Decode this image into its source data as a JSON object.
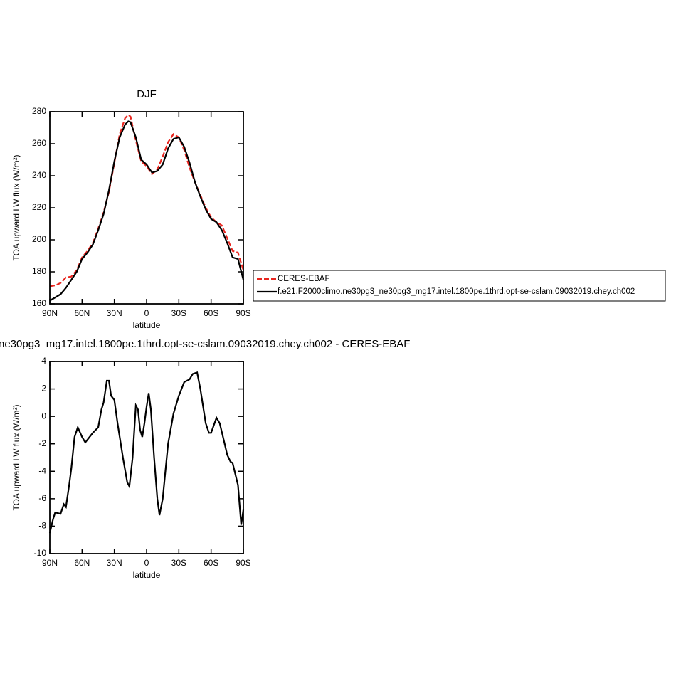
{
  "chart_data": [
    {
      "type": "line",
      "title": "DJF",
      "xlabel": "latitude",
      "ylabel": "TOA upward LW flux (W/m²)",
      "x": [
        90,
        85,
        80,
        75,
        70,
        65,
        60,
        55,
        50,
        45,
        40,
        35,
        30,
        25,
        20,
        17,
        15,
        10,
        5,
        0,
        -5,
        -10,
        -15,
        -20,
        -25,
        -30,
        -35,
        -40,
        -45,
        -50,
        -55,
        -60,
        -65,
        -70,
        -75,
        -80,
        -85,
        -90
      ],
      "series": [
        {
          "name": "CERES-EBAF",
          "color": "#e8261f",
          "dash": true,
          "values": [
            171,
            171.5,
            173,
            176.5,
            177,
            181,
            189,
            193,
            198,
            207,
            217,
            230,
            248,
            266,
            276,
            278,
            277,
            262,
            249,
            246,
            241,
            244,
            252,
            261,
            266,
            264,
            256,
            245,
            236,
            228,
            220,
            214,
            211,
            209,
            201,
            193,
            192,
            181
          ]
        },
        {
          "name": "f.e21.F2000climo.ne30pg3_ne30pg3_mg17.intel.1800pe.1thrd.opt-se-cslam.09032019.chey.ch002",
          "color": "#000000",
          "dash": false,
          "values": [
            162,
            164,
            166,
            170,
            175,
            180,
            188,
            192,
            197,
            206,
            216,
            231,
            249,
            264,
            272,
            274,
            273.5,
            264,
            250,
            247,
            242,
            243,
            247,
            257,
            263,
            264,
            258,
            248,
            236,
            227,
            219,
            213,
            211,
            206,
            198,
            189,
            188,
            175
          ]
        }
      ],
      "xlim": [
        90,
        -90
      ],
      "xticks": [
        {
          "value": 90,
          "label": "90N"
        },
        {
          "value": 60,
          "label": "60N"
        },
        {
          "value": 30,
          "label": "30N"
        },
        0,
        {
          "value": -30,
          "label": "30S"
        },
        {
          "value": -60,
          "label": "60S"
        },
        {
          "value": -90,
          "label": "90S"
        }
      ],
      "ylim": [
        160,
        280
      ],
      "yticks": [
        160,
        180,
        200,
        220,
        240,
        260,
        280
      ],
      "legend": "right"
    },
    {
      "type": "line",
      "title": "ne30pg3_mg17.intel.1800pe.1thrd.opt-se-cslam.09032019.chey.ch002 - CERES-EBAF",
      "xlabel": "latitude",
      "ylabel": "TOA upward LW flux (W/m²)",
      "x": [
        90,
        87,
        85,
        80,
        77,
        75,
        72,
        70,
        67,
        64,
        60,
        57,
        53,
        50,
        45,
        42,
        40,
        37,
        35,
        33,
        30,
        27,
        22,
        18,
        16,
        13,
        10,
        8,
        6,
        4,
        2,
        0,
        -2,
        -4,
        -7,
        -10,
        -12,
        -15,
        -20,
        -25,
        -30,
        -35,
        -40,
        -43,
        -47,
        -50,
        -55,
        -58,
        -60,
        -65,
        -68,
        -72,
        -75,
        -78,
        -80,
        -85,
        -88,
        -90
      ],
      "series": [
        {
          "color": "#000000",
          "dash": false,
          "values": [
            -8.5,
            -7.5,
            -7,
            -7.1,
            -6.4,
            -6.6,
            -5,
            -3.8,
            -1.5,
            -0.8,
            -1.5,
            -1.9,
            -1.5,
            -1.2,
            -0.8,
            0.5,
            1,
            2.6,
            2.6,
            1.5,
            1.2,
            -0.5,
            -3,
            -4.8,
            -5.1,
            -3,
            0.8,
            0.5,
            -1,
            -1.5,
            -0.5,
            0.7,
            1.7,
            0.5,
            -3,
            -6,
            -7.2,
            -6,
            -2,
            0.2,
            1.5,
            2.5,
            2.7,
            3.1,
            3.2,
            2,
            -0.5,
            -1.2,
            -1.2,
            -0.1,
            -0.5,
            -1.8,
            -2.8,
            -3.3,
            -3.4,
            -5,
            -7.9,
            -6.8
          ]
        }
      ],
      "xlim": [
        90,
        -90
      ],
      "xticks": [
        {
          "value": 90,
          "label": "90N"
        },
        {
          "value": 60,
          "label": "60N"
        },
        {
          "value": 30,
          "label": "30N"
        },
        0,
        {
          "value": -30,
          "label": "30S"
        },
        {
          "value": -60,
          "label": "60S"
        },
        {
          "value": -90,
          "label": "90S"
        }
      ],
      "ylim": [
        -10,
        4
      ],
      "yticks": [
        -10,
        -8,
        -6,
        -4,
        -2,
        0,
        2,
        4
      ]
    }
  ]
}
